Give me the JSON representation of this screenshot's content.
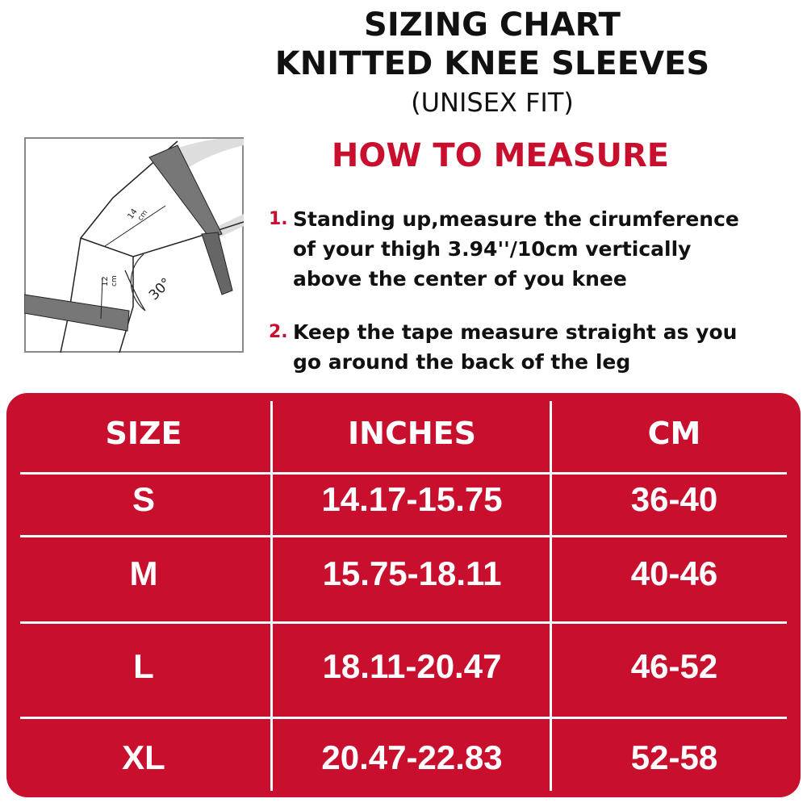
{
  "header": {
    "title_line1": "SIZING CHART",
    "title_line2": "KNITTED KNEE SLEEVES",
    "subtitle": "(UNISEX FIT)"
  },
  "how_to": {
    "heading": "HOW TO MEASURE",
    "steps": [
      {
        "num": "1.",
        "lines": [
          "Standing up,measure the cirumference",
          "of your thigh 3.94''/10cm vertically",
          "above the center of you knee"
        ]
      },
      {
        "num": "2.",
        "lines": [
          "Keep the tape measure straight as you",
          "go around the back of the leg"
        ]
      }
    ]
  },
  "diagram": {
    "label_upper": "14",
    "label_upper_unit": "cm",
    "label_lower": "12",
    "label_lower_unit": "cm",
    "angle": "30°"
  },
  "table": {
    "headers": [
      "SIZE",
      "INCHES",
      "CM"
    ],
    "rows": [
      [
        "S",
        "14.17-15.75",
        "36-40"
      ],
      [
        "M",
        "15.75-18.11",
        "40-46"
      ],
      [
        "L",
        "18.11-20.47",
        "46-52"
      ],
      [
        "XL",
        "20.47-22.83",
        "52-58"
      ]
    ]
  },
  "colors": {
    "accent": "#c8102e",
    "text": "#111111",
    "table_text": "#ffffff"
  }
}
